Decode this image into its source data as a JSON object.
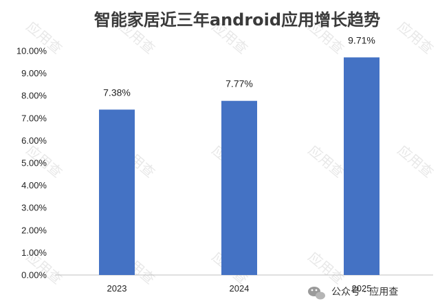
{
  "chart_data": {
    "type": "bar",
    "title": "智能家居近三年android应用增长趋势",
    "categories": [
      "2023",
      "2024",
      "2025"
    ],
    "values": [
      7.38,
      7.77,
      9.71
    ],
    "data_labels": [
      "7.38%",
      "7.77%",
      "9.71%"
    ],
    "y_ticks": [
      "0.00%",
      "1.00%",
      "2.00%",
      "3.00%",
      "4.00%",
      "5.00%",
      "6.00%",
      "7.00%",
      "8.00%",
      "9.00%",
      "10.00%"
    ],
    "ylim": [
      0,
      10
    ],
    "xlabel": "",
    "ylabel": "",
    "grid": false,
    "legend": "none",
    "bar_color": "#4472c4"
  },
  "watermark": "应用查",
  "credit": "公众号 · 应用查"
}
